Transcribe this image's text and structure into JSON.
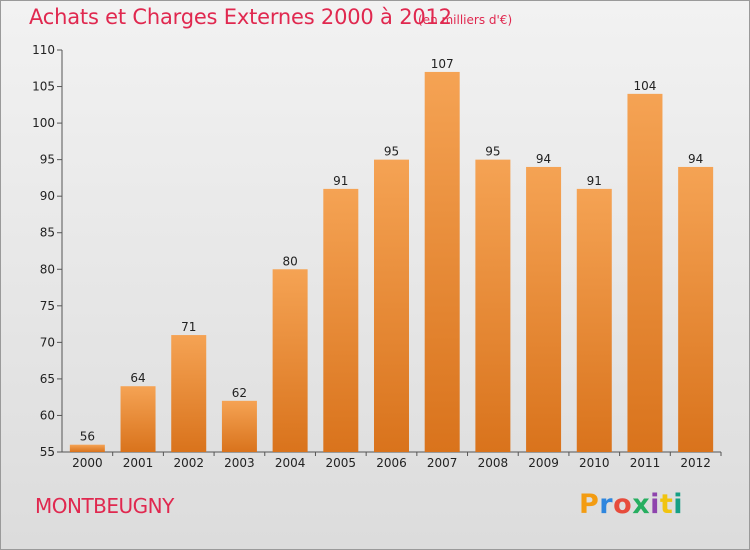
{
  "header": {
    "title": "Achats et Charges Externes 2000 à 2012",
    "subtitle": "(en milliers d'€)"
  },
  "footer": {
    "commune": "MONTBEUGNY",
    "brand": "Proxiti",
    "brand_colors": [
      "#f39c12",
      "#2e86de",
      "#e74c3c",
      "#27ae60",
      "#8e44ad",
      "#f1c40f",
      "#16a085"
    ]
  },
  "colors": {
    "bar_light": "#f5a354",
    "bar_dark": "#d9731c",
    "title": "#e0284f"
  },
  "chart_data": {
    "type": "bar",
    "title": "Achats et Charges Externes 2000 à 2012",
    "subtitle": "(en milliers d'€)",
    "categories": [
      "2000",
      "2001",
      "2002",
      "2003",
      "2004",
      "2005",
      "2006",
      "2007",
      "2008",
      "2009",
      "2010",
      "2011",
      "2012"
    ],
    "values": [
      56,
      64,
      71,
      62,
      80,
      91,
      95,
      107,
      95,
      94,
      91,
      104,
      94
    ],
    "ylim": [
      55,
      110
    ],
    "yticks": [
      55,
      60,
      65,
      70,
      75,
      80,
      85,
      90,
      95,
      100,
      105,
      110
    ],
    "grid": false,
    "data_labels": true
  }
}
